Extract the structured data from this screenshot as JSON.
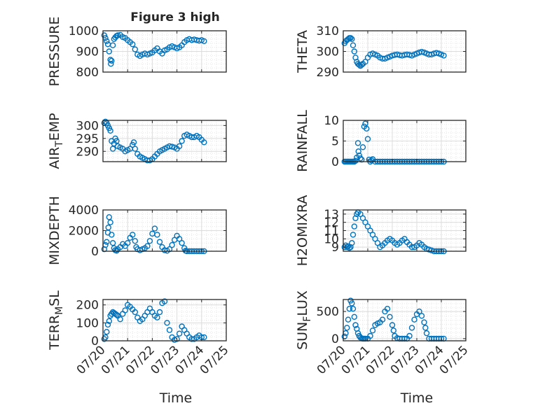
{
  "figure": {
    "title": "Figure 3 high",
    "xlabel": "Time",
    "xtick_labels": [
      "07/20",
      "07/21",
      "07/22",
      "07/23",
      "07/24",
      "07/25"
    ]
  },
  "colors": {
    "marker": "#0072BD",
    "axes": "#262626",
    "grid_major": "#dcdcdc",
    "grid_minor": "#e6e6e6"
  },
  "chart_data": [
    {
      "type": "scatter",
      "ylabel": "PRESSURE",
      "ylim": [
        800,
        1000
      ],
      "yticks": [
        800,
        900,
        1000
      ],
      "ytick_labels": [
        "800",
        "900",
        "1000"
      ],
      "xlim": [
        0,
        5
      ],
      "x": [
        0.05,
        0.1,
        0.15,
        0.2,
        0.25,
        0.3,
        0.32,
        0.35,
        0.4,
        0.45,
        0.5,
        0.55,
        0.6,
        0.7,
        0.8,
        0.9,
        1.0,
        1.1,
        1.2,
        1.3,
        1.4,
        1.5,
        1.6,
        1.7,
        1.8,
        1.9,
        2.0,
        2.1,
        2.2,
        2.3,
        2.4,
        2.5,
        2.6,
        2.7,
        2.8,
        2.9,
        3.0,
        3.1,
        3.2,
        3.3,
        3.4,
        3.5,
        3.6,
        3.7,
        3.8,
        3.9,
        4.0,
        4.1
      ],
      "y": [
        978,
        965,
        950,
        935,
        900,
        860,
        840,
        855,
        930,
        960,
        968,
        975,
        978,
        980,
        970,
        965,
        955,
        945,
        935,
        910,
        885,
        878,
        885,
        890,
        885,
        890,
        895,
        905,
        915,
        900,
        890,
        905,
        910,
        920,
        925,
        920,
        915,
        920,
        930,
        945,
        955,
        960,
        955,
        958,
        955,
        952,
        955,
        950
      ]
    },
    {
      "type": "scatter",
      "ylabel": "THETA",
      "ylim": [
        290,
        310
      ],
      "yticks": [
        290,
        300,
        310
      ],
      "ytick_labels": [
        "290",
        "300",
        "310"
      ],
      "xlim": [
        0,
        5
      ],
      "x": [
        0.05,
        0.1,
        0.15,
        0.2,
        0.25,
        0.3,
        0.35,
        0.4,
        0.45,
        0.5,
        0.55,
        0.6,
        0.65,
        0.7,
        0.75,
        0.8,
        0.9,
        1.0,
        1.1,
        1.2,
        1.3,
        1.4,
        1.5,
        1.6,
        1.7,
        1.8,
        1.9,
        2.0,
        2.1,
        2.2,
        2.3,
        2.4,
        2.5,
        2.6,
        2.7,
        2.8,
        2.9,
        3.0,
        3.1,
        3.2,
        3.3,
        3.4,
        3.5,
        3.6,
        3.7,
        3.8,
        3.9,
        4.0,
        4.1
      ],
      "y": [
        304,
        305,
        305.5,
        306,
        306.5,
        306.5,
        306,
        303,
        300,
        297,
        295,
        294,
        293.5,
        293,
        293.5,
        294,
        295,
        297,
        298.5,
        299,
        298.5,
        298,
        297,
        296.5,
        296.5,
        297,
        297.5,
        298,
        298.3,
        298.5,
        298.2,
        298,
        298.3,
        298.5,
        298.3,
        298,
        298.5,
        299,
        299.5,
        299.8,
        299.5,
        299,
        298.5,
        298.5,
        299,
        299.3,
        299,
        298.5,
        298
      ]
    },
    {
      "type": "scatter",
      "ylabel": "AIRTEMP",
      "ylim": [
        286,
        302
      ],
      "yticks": [
        290,
        295,
        300
      ],
      "ytick_labels": [
        "290",
        "295",
        "300"
      ],
      "xlim": [
        0,
        5
      ],
      "x": [
        0.05,
        0.1,
        0.15,
        0.2,
        0.25,
        0.3,
        0.35,
        0.4,
        0.45,
        0.5,
        0.55,
        0.6,
        0.7,
        0.8,
        0.9,
        1.0,
        1.1,
        1.2,
        1.25,
        1.3,
        1.4,
        1.5,
        1.6,
        1.7,
        1.8,
        1.9,
        2.0,
        2.1,
        2.2,
        2.3,
        2.4,
        2.5,
        2.6,
        2.7,
        2.8,
        2.9,
        3.0,
        3.1,
        3.2,
        3.3,
        3.4,
        3.5,
        3.6,
        3.7,
        3.8,
        3.9,
        4.0,
        4.1
      ],
      "y": [
        301,
        301.5,
        301,
        300,
        299,
        298,
        294,
        291,
        293,
        295,
        294,
        292,
        291.5,
        291,
        290,
        290.5,
        291,
        292.5,
        293.5,
        291,
        289,
        288,
        287.5,
        287,
        286.5,
        286.5,
        287,
        288,
        289,
        290,
        290.5,
        291,
        291.5,
        292,
        291.8,
        291.5,
        291,
        292,
        294,
        296,
        296.5,
        296,
        295.5,
        295.5,
        296,
        295.5,
        294.5,
        293.5
      ]
    },
    {
      "type": "scatter",
      "ylabel": "RAINFALL",
      "ylim": [
        0,
        10
      ],
      "yticks": [
        0,
        5,
        10
      ],
      "ytick_labels": [
        "0",
        "5",
        "10"
      ],
      "xlim": [
        0,
        5
      ],
      "x": [
        0.05,
        0.1,
        0.15,
        0.2,
        0.25,
        0.3,
        0.35,
        0.4,
        0.45,
        0.5,
        0.55,
        0.6,
        0.62,
        0.65,
        0.7,
        0.75,
        0.8,
        0.85,
        0.9,
        0.95,
        1.0,
        1.05,
        1.1,
        1.15,
        1.2,
        1.3,
        1.4,
        1.5,
        1.6,
        1.7,
        1.8,
        1.9,
        2.0,
        2.1,
        2.2,
        2.3,
        2.4,
        2.5,
        2.6,
        2.7,
        2.8,
        2.9,
        3.0,
        3.1,
        3.2,
        3.3,
        3.4,
        3.5,
        3.6,
        3.7,
        3.8,
        3.9,
        4.0,
        4.1
      ],
      "y": [
        0,
        0,
        0,
        0,
        0,
        0,
        0,
        0,
        0,
        0.2,
        1,
        4.5,
        2.5,
        1.5,
        0.8,
        0.5,
        3.5,
        8.5,
        9.2,
        8,
        5.5,
        0.5,
        0,
        0.3,
        0.6,
        0,
        0,
        0,
        0,
        0,
        0,
        0,
        0,
        0,
        0,
        0,
        0,
        0,
        0,
        0,
        0,
        0,
        0,
        0,
        0,
        0,
        0,
        0,
        0,
        0,
        0,
        0,
        0,
        0
      ]
    },
    {
      "type": "scatter",
      "ylabel": "MIXDEPTH",
      "ylim": [
        0,
        4000
      ],
      "yticks": [
        0,
        2000,
        4000
      ],
      "ytick_labels": [
        "0",
        "2000",
        "4000"
      ],
      "xlim": [
        0,
        5
      ],
      "x": [
        0.05,
        0.1,
        0.15,
        0.2,
        0.22,
        0.25,
        0.3,
        0.35,
        0.4,
        0.45,
        0.5,
        0.55,
        0.6,
        0.7,
        0.8,
        0.9,
        1.0,
        1.1,
        1.2,
        1.3,
        1.35,
        1.4,
        1.5,
        1.6,
        1.7,
        1.8,
        1.9,
        2.0,
        2.1,
        2.2,
        2.3,
        2.4,
        2.5,
        2.6,
        2.7,
        2.8,
        2.9,
        3.0,
        3.1,
        3.2,
        3.3,
        3.35,
        3.4,
        3.5,
        3.6,
        3.7,
        3.8,
        3.9,
        4.0,
        4.1
      ],
      "y": [
        200,
        600,
        900,
        1800,
        2300,
        3300,
        2800,
        1600,
        800,
        300,
        100,
        50,
        200,
        400,
        700,
        500,
        800,
        1300,
        1600,
        1000,
        400,
        200,
        100,
        200,
        300,
        500,
        1000,
        1700,
        2200,
        1600,
        900,
        400,
        100,
        50,
        200,
        600,
        1100,
        1500,
        1200,
        800,
        300,
        50,
        10,
        10,
        10,
        10,
        10,
        10,
        10,
        10
      ]
    },
    {
      "type": "scatter",
      "ylabel": "H2OMIXRA",
      "ylim": [
        8.5,
        13.5
      ],
      "yticks": [
        9,
        10,
        11,
        12,
        13
      ],
      "ytick_labels": [
        "9",
        "10",
        "11",
        "12",
        "13"
      ],
      "xlim": [
        0,
        5
      ],
      "x": [
        0.05,
        0.1,
        0.15,
        0.2,
        0.25,
        0.3,
        0.35,
        0.4,
        0.45,
        0.5,
        0.55,
        0.6,
        0.7,
        0.8,
        0.9,
        1.0,
        1.1,
        1.2,
        1.3,
        1.4,
        1.5,
        1.6,
        1.7,
        1.8,
        1.9,
        2.0,
        2.1,
        2.2,
        2.3,
        2.4,
        2.5,
        2.6,
        2.7,
        2.8,
        2.9,
        3.0,
        3.1,
        3.2,
        3.3,
        3.4,
        3.5,
        3.6,
        3.7,
        3.8,
        3.9,
        4.0,
        4.1
      ],
      "y": [
        9,
        9.2,
        9,
        9.1,
        8.9,
        9,
        9.5,
        10.5,
        11.5,
        12.5,
        13,
        13.2,
        13,
        12.5,
        12,
        11.5,
        11,
        10.5,
        10,
        9.5,
        9,
        9.2,
        9.5,
        9.8,
        10,
        9.8,
        9.5,
        9.3,
        9.5,
        9.8,
        10,
        9.6,
        9.3,
        9,
        9,
        9.2,
        9.5,
        9.3,
        9,
        8.8,
        8.7,
        8.6,
        8.5,
        8.5,
        8.5,
        8.5,
        8.5
      ]
    },
    {
      "type": "scatter",
      "ylabel": "TERRMSL",
      "ylim": [
        0,
        230
      ],
      "yticks": [
        0,
        100,
        200
      ],
      "ytick_labels": [
        "0",
        "100",
        "200"
      ],
      "xlim": [
        0,
        5
      ],
      "x": [
        0.05,
        0.1,
        0.15,
        0.2,
        0.25,
        0.3,
        0.35,
        0.4,
        0.45,
        0.5,
        0.55,
        0.6,
        0.7,
        0.8,
        0.9,
        1.0,
        1.1,
        1.2,
        1.3,
        1.4,
        1.5,
        1.6,
        1.7,
        1.8,
        1.9,
        2.0,
        2.1,
        2.2,
        2.3,
        2.4,
        2.5,
        2.6,
        2.7,
        2.8,
        2.9,
        3.0,
        3.1,
        3.2,
        3.3,
        3.4,
        3.5,
        3.6,
        3.7,
        3.8,
        3.9,
        4.0,
        4.1
      ],
      "y": [
        10,
        20,
        50,
        90,
        110,
        140,
        150,
        160,
        155,
        150,
        145,
        140,
        120,
        150,
        170,
        200,
        190,
        175,
        160,
        130,
        110,
        120,
        140,
        160,
        180,
        160,
        140,
        130,
        160,
        210,
        220,
        100,
        60,
        20,
        5,
        10,
        40,
        80,
        60,
        40,
        20,
        10,
        10,
        20,
        30,
        20,
        20
      ]
    },
    {
      "type": "scatter",
      "ylabel": "SUNFLUX",
      "ylim": [
        -40,
        720
      ],
      "yticks": [
        0,
        500
      ],
      "ytick_labels": [
        "0",
        "500"
      ],
      "xlim": [
        0,
        5
      ],
      "x": [
        0.05,
        0.1,
        0.15,
        0.2,
        0.25,
        0.3,
        0.35,
        0.4,
        0.45,
        0.5,
        0.55,
        0.6,
        0.65,
        0.7,
        0.75,
        0.8,
        0.85,
        0.9,
        1.0,
        1.1,
        1.2,
        1.3,
        1.4,
        1.5,
        1.6,
        1.7,
        1.8,
        1.9,
        2.0,
        2.05,
        2.1,
        2.2,
        2.3,
        2.4,
        2.5,
        2.6,
        2.7,
        2.8,
        2.9,
        3.0,
        3.1,
        3.2,
        3.3,
        3.35,
        3.4,
        3.5,
        3.6,
        3.7,
        3.8,
        3.9,
        4.0,
        4.1
      ],
      "y": [
        40,
        100,
        200,
        350,
        550,
        700,
        650,
        550,
        400,
        250,
        180,
        100,
        50,
        20,
        5,
        0,
        0,
        0,
        0,
        50,
        150,
        250,
        280,
        300,
        350,
        500,
        550,
        400,
        250,
        150,
        50,
        10,
        0,
        0,
        0,
        0,
        50,
        200,
        350,
        450,
        500,
        420,
        300,
        200,
        100,
        0,
        0,
        0,
        0,
        0,
        0,
        0
      ]
    }
  ],
  "panels": [
    {
      "ylabel": "PRESSURE"
    },
    {
      "ylabel": "THETA"
    },
    {
      "ylabel_main": "AIR",
      "ylabel_sub": "T",
      "ylabel_tail": "EMP"
    },
    {
      "ylabel": "RAINFALL"
    },
    {
      "ylabel": "MIXDEPTH"
    },
    {
      "ylabel": "H2OMIXRA"
    },
    {
      "ylabel_main": "TERR",
      "ylabel_sub": "M",
      "ylabel_tail": "SL"
    },
    {
      "ylabel_main": "SUN",
      "ylabel_sub": "F",
      "ylabel_tail": "LUX"
    }
  ]
}
